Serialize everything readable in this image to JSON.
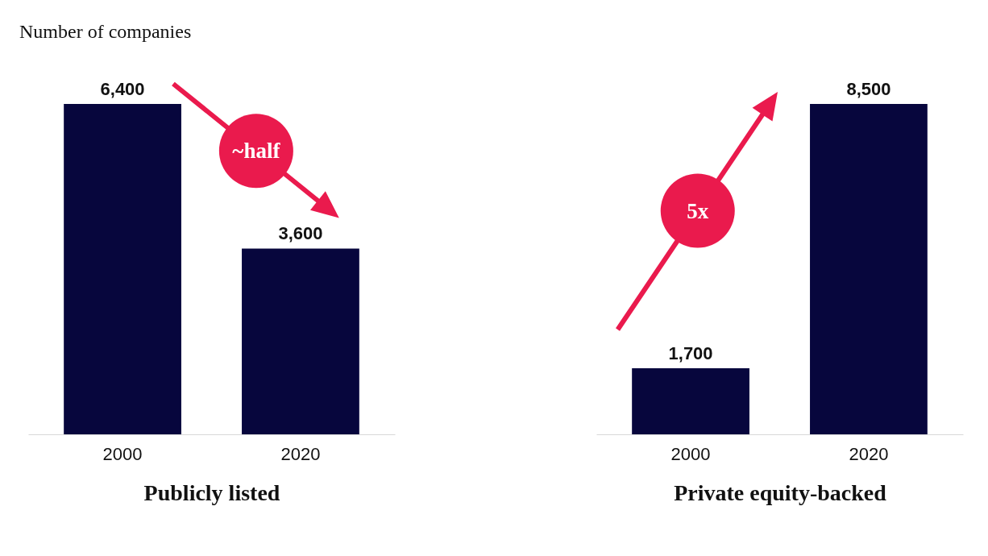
{
  "chart_data": [
    {
      "type": "bar",
      "subtitle": "Number of companies",
      "xlabel": "Publicly listed",
      "categories": [
        "2000",
        "2020"
      ],
      "values": [
        6400,
        3600
      ],
      "value_labels": [
        "6,400",
        "3,600"
      ],
      "color": "#07063d",
      "annotations": [
        "~half"
      ]
    },
    {
      "type": "bar",
      "xlabel": "Private equity-backed",
      "categories": [
        "2000",
        "2020"
      ],
      "values": [
        1700,
        8500
      ],
      "value_labels": [
        "1,700",
        "8,500"
      ],
      "color": "#07063d",
      "annotations": [
        "5x"
      ]
    }
  ]
}
